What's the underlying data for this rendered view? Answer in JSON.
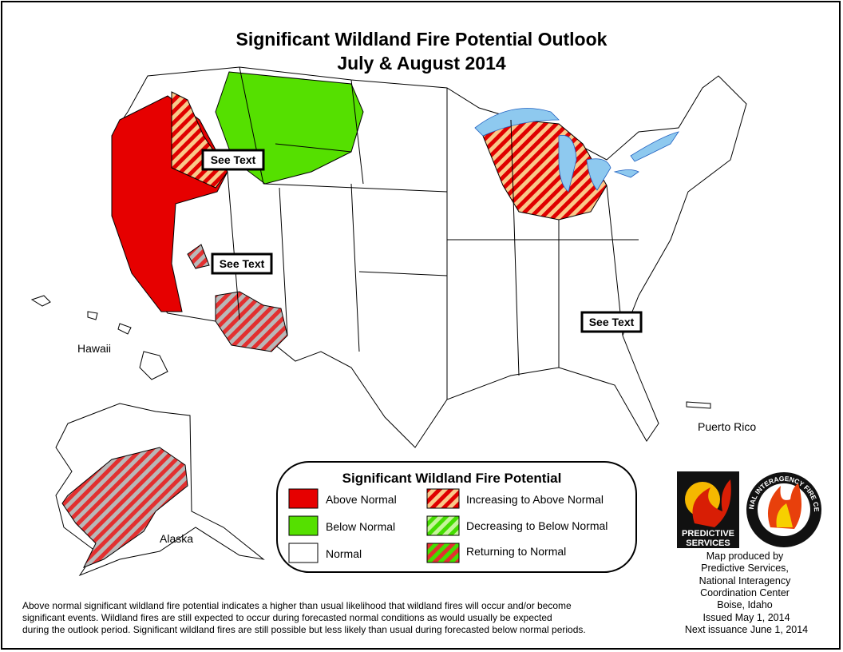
{
  "header": {
    "title": "Significant Wildland Fire Potential Outlook",
    "subtitle": "July & August 2014"
  },
  "map_labels": {
    "see_text": [
      "See Text",
      "See Text",
      "See Text"
    ],
    "hawaii": "Hawaii",
    "alaska": "Alaska",
    "puerto_rico": "Puerto Rico"
  },
  "legend": {
    "title": "Significant Wildland Fire Potential",
    "items": [
      {
        "label": "Above Normal"
      },
      {
        "label": "Below Normal"
      },
      {
        "label": "Normal"
      },
      {
        "label": "Increasing to Above Normal"
      },
      {
        "label": "Decreasing to Below Normal"
      },
      {
        "label": "Returning to Normal"
      }
    ]
  },
  "logos": {
    "predictive": [
      "PREDICTIVE",
      "SERVICES"
    ],
    "nifc": "NATIONAL INTERAGENCY FIRE CENTER",
    "nifc_city": "Boise, Idaho"
  },
  "credits": [
    "Map produced by",
    "Predictive Services,",
    "National Interagency",
    "Coordination Center",
    "Boise, Idaho",
    "Issued May 1, 2014",
    "Next issuance June 1, 2014"
  ],
  "footnote": [
    "Above normal significant wildland fire potential indicates a higher than usual likelihood that wildland fires will occur and/or become",
    "significant events.  Wildland fires are still expected to occur during forecasted normal conditions as would usually be expected",
    "during the outlook period.  Significant wildland fires are still possible but less likely than usual during forecasted below normal periods."
  ]
}
